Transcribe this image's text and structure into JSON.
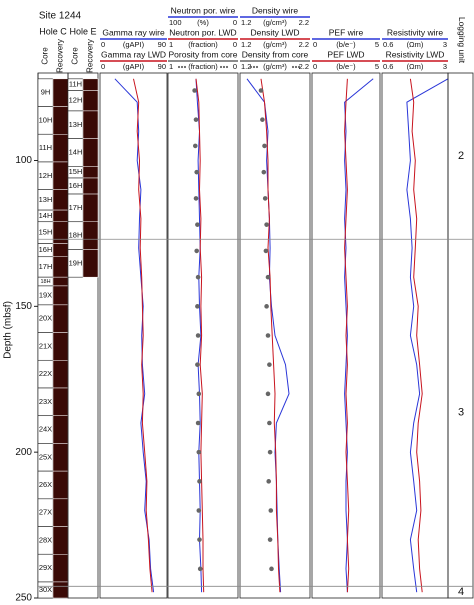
{
  "chart_data": {
    "type": "well-log",
    "title": "Site 1244",
    "y_label": "Depth (mbsf)",
    "ylim": [
      70,
      250
    ],
    "yticks": [
      100,
      150,
      200,
      250
    ],
    "depth": [
      72,
      80,
      90,
      100,
      110,
      120,
      130,
      140,
      150,
      160,
      170,
      180,
      190,
      200,
      210,
      220,
      230,
      240,
      248
    ],
    "holes": [
      {
        "name": "Hole C",
        "column_labels": [
          "Core",
          "Recovery"
        ],
        "cores": [
          {
            "label": "9H",
            "top": 72,
            "bottom": 81.5
          },
          {
            "label": "10H",
            "top": 81.5,
            "bottom": 91
          },
          {
            "label": "11H",
            "top": 91,
            "bottom": 100.5
          },
          {
            "label": "12H",
            "top": 100.5,
            "bottom": 110
          },
          {
            "label": "13H",
            "top": 110,
            "bottom": 117
          },
          {
            "label": "14H",
            "top": 117,
            "bottom": 121
          },
          {
            "label": "15H",
            "top": 121,
            "bottom": 128.5
          },
          {
            "label": "16H",
            "top": 128.5,
            "bottom": 133
          },
          {
            "label": "17H",
            "top": 133,
            "bottom": 140
          },
          {
            "label": "18H",
            "top": 140,
            "bottom": 143
          },
          {
            "label": "19X",
            "top": 143,
            "bottom": 149.5
          },
          {
            "label": "20X",
            "top": 149.5,
            "bottom": 159
          },
          {
            "label": "21X",
            "top": 159,
            "bottom": 168.5
          },
          {
            "label": "22X",
            "top": 168.5,
            "bottom": 178
          },
          {
            "label": "23X",
            "top": 178,
            "bottom": 187.5
          },
          {
            "label": "24X",
            "top": 187.5,
            "bottom": 197
          },
          {
            "label": "25X",
            "top": 197,
            "bottom": 206.5
          },
          {
            "label": "26X",
            "top": 206.5,
            "bottom": 216
          },
          {
            "label": "27X",
            "top": 216,
            "bottom": 225.5
          },
          {
            "label": "28X",
            "top": 225.5,
            "bottom": 235
          },
          {
            "label": "29X",
            "top": 235,
            "bottom": 244.5
          },
          {
            "label": "30X",
            "top": 244.5,
            "bottom": 250
          }
        ]
      },
      {
        "name": "Hole E",
        "column_labels": [
          "Core",
          "Recovery"
        ],
        "cores": [
          {
            "label": "11H",
            "top": 72,
            "bottom": 76
          },
          {
            "label": "12H",
            "top": 76,
            "bottom": 83
          },
          {
            "label": "13H",
            "top": 83,
            "bottom": 92.5
          },
          {
            "label": "14H",
            "top": 92.5,
            "bottom": 102
          },
          {
            "label": "15H",
            "top": 102,
            "bottom": 106
          },
          {
            "label": "16H",
            "top": 106,
            "bottom": 111.5
          },
          {
            "label": "17H",
            "top": 111.5,
            "bottom": 121
          },
          {
            "label": "18H",
            "top": 121,
            "bottom": 130.5
          },
          {
            "label": "19H",
            "top": 130.5,
            "bottom": 140
          }
        ]
      }
    ],
    "tracks": [
      {
        "headers": [
          {
            "name": "Gamma ray wire",
            "unit": "(gAPI)",
            "xlim": [
              0,
              90
            ],
            "color": "#2a36d8",
            "style": "line",
            "values": [
              20,
              50,
              52,
              50,
              55,
              53,
              52,
              55,
              58,
              56,
              57,
              60,
              55,
              58,
              62,
              60,
              66,
              68,
              72
            ]
          },
          {
            "name": "Gamma ray LWD",
            "unit": "(gAPI)",
            "xlim": [
              0,
              90
            ],
            "color": "#c8141e",
            "style": "line",
            "values": [
              45,
              52,
              50,
              53,
              52,
              55,
              54,
              56,
              57,
              58,
              56,
              58,
              57,
              60,
              63,
              62,
              65,
              67,
              70
            ]
          }
        ]
      },
      {
        "headers": [
          {
            "name": "Neutron por. wire",
            "unit": "(%)",
            "xlim": [
              100,
              0
            ],
            "color": "#2a36d8",
            "style": "line",
            "values": [
              60,
              58,
              55,
              57,
              56,
              55,
              54,
              56,
              55,
              53,
              57,
              55,
              54,
              56,
              55,
              54,
              55,
              53,
              52
            ]
          },
          {
            "name": "Neutron por. LWD",
            "unit": "(fraction)",
            "xlim": [
              1,
              0
            ],
            "color": "#c8141e",
            "style": "line",
            "values": [
              0.6,
              0.56,
              0.55,
              0.54,
              0.55,
              0.53,
              0.54,
              0.52,
              0.53,
              0.52,
              0.54,
              0.51,
              0.52,
              0.53,
              0.52,
              0.51,
              0.5,
              0.5,
              0.49
            ]
          },
          {
            "name": "Porosity from core",
            "unit": "(fraction)",
            "xlim": [
              1,
              0
            ],
            "color": "#666666",
            "style": "points",
            "depth": [
              76,
              86,
              95,
              104,
              113,
              122,
              131,
              140,
              150,
              160,
              170,
              180,
              190,
              200,
              210,
              220,
              230,
              240
            ],
            "values": [
              0.62,
              0.6,
              0.61,
              0.59,
              0.6,
              0.58,
              0.59,
              0.57,
              0.58,
              0.57,
              0.58,
              0.56,
              0.57,
              0.56,
              0.55,
              0.56,
              0.55,
              0.54
            ]
          }
        ]
      },
      {
        "headers": [
          {
            "name": "Density wire",
            "unit": "(g/cm³)",
            "xlim": [
              1.2,
              2.2
            ],
            "color": "#2a36d8",
            "style": "line",
            "values": [
              1.3,
              1.55,
              1.6,
              1.58,
              1.6,
              1.62,
              1.63,
              1.62,
              1.65,
              1.7,
              1.85,
              1.9,
              1.72,
              1.7,
              1.72,
              1.73,
              1.74,
              1.76,
              1.78
            ]
          },
          {
            "name": "Density LWD",
            "unit": "(g/cm³)",
            "xlim": [
              1.2,
              2.2
            ],
            "color": "#c8141e",
            "style": "line",
            "values": [
              1.5,
              1.55,
              1.58,
              1.6,
              1.6,
              1.62,
              1.6,
              1.63,
              1.64,
              1.66,
              1.68,
              1.7,
              1.69,
              1.71,
              1.72,
              1.72,
              1.74,
              1.75,
              1.77
            ]
          },
          {
            "name": "Density from core",
            "unit": "(g/cm³)",
            "xlim": [
              1.2,
              2.2
            ],
            "color": "#666666",
            "style": "points",
            "depth": [
              76,
              86,
              95,
              104,
              113,
              122,
              131,
              140,
              150,
              160,
              170,
              180,
              190,
              200,
              210,
              220,
              230,
              240
            ],
            "values": [
              1.5,
              1.52,
              1.55,
              1.54,
              1.56,
              1.58,
              1.57,
              1.6,
              1.58,
              1.6,
              1.62,
              1.6,
              1.62,
              1.63,
              1.61,
              1.64,
              1.63,
              1.65
            ]
          }
        ]
      },
      {
        "headers": [
          {
            "name": "PEF wire",
            "unit": "(b/e⁻)",
            "xlim": [
              0,
              5
            ],
            "color": "#2a36d8",
            "style": "line",
            "values": [
              4.5,
              2.4,
              2.5,
              2.4,
              2.5,
              2.4,
              2.5,
              2.4,
              2.5,
              2.6,
              2.5,
              2.4,
              2.5,
              2.6,
              2.5,
              2.5,
              2.6,
              2.5,
              2.6
            ]
          },
          {
            "name": "PEF LWD",
            "unit": "(b/e⁻)",
            "xlim": [
              0,
              5
            ],
            "color": "#c8141e",
            "style": "line",
            "values": [
              2.6,
              2.5,
              2.4,
              2.5,
              2.6,
              2.5,
              2.4,
              2.5,
              2.6,
              2.5,
              2.6,
              2.5,
              2.6,
              2.5,
              2.6,
              2.7,
              2.6,
              2.7,
              2.6
            ]
          }
        ]
      },
      {
        "log": true,
        "headers": [
          {
            "name": "Resistivity wire",
            "unit": "(Ωm)",
            "xlim": [
              0.6,
              3
            ],
            "color": "#2a36d8",
            "style": "line",
            "values": [
              3,
              1.1,
              1.15,
              1.2,
              1.1,
              1.2,
              1.25,
              1.2,
              1.3,
              1.2,
              1.4,
              1.5,
              1.3,
              1.2,
              1.3,
              1.4,
              1.2,
              1.3,
              1.4
            ]
          },
          {
            "name": "Resistivity LWD",
            "unit": "(Ωm)",
            "xlim": [
              0.6,
              3
            ],
            "color": "#c8141e",
            "style": "line",
            "values": [
              1.2,
              1.3,
              1.25,
              1.35,
              1.3,
              1.4,
              1.35,
              1.3,
              1.45,
              1.4,
              1.5,
              1.6,
              1.45,
              1.4,
              1.5,
              1.55,
              1.45,
              1.5,
              1.6
            ]
          }
        ]
      }
    ],
    "unit_title": "Logging unit",
    "unit_boundaries": [
      127,
      246
    ],
    "units": [
      "2",
      "3",
      "4"
    ]
  }
}
